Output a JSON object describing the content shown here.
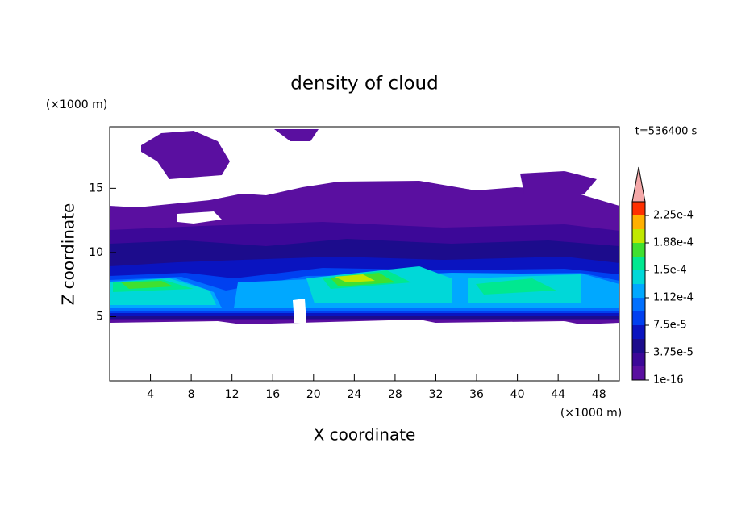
{
  "chart_data": {
    "type": "contour",
    "title": "density of cloud",
    "xlabel": "X coordinate",
    "ylabel": "Z coordinate",
    "x_unit": "(×1000 m)",
    "y_unit": "(×1000 m)",
    "annotation": "t=536400 s",
    "xlim": [
      0,
      50
    ],
    "xticks": [
      4,
      8,
      12,
      16,
      20,
      24,
      28,
      32,
      36,
      40,
      44,
      48
    ],
    "ylim": [
      0,
      19.8
    ],
    "yticks": [
      5,
      10,
      15
    ],
    "colorbar": {
      "lim": [
        0,
        0.00024375
      ],
      "ticks": [
        {
          "value": 1e-16,
          "label": "1e-16"
        },
        {
          "value": 3.75e-05,
          "label": "3.75e-5"
        },
        {
          "value": 7.5e-05,
          "label": "7.5e-5"
        },
        {
          "value": 0.0001125,
          "label": "1.12e-4"
        },
        {
          "value": 0.00015,
          "label": "1.5e-4"
        },
        {
          "value": 0.0001875,
          "label": "1.88e-4"
        },
        {
          "value": 0.000225,
          "label": "2.25e-4"
        }
      ],
      "colors": [
        "#5a0fa0",
        "#3c0898",
        "#1c0c8c",
        "#0a14c0",
        "#0040f0",
        "#0070ff",
        "#00a8ff",
        "#00d8d8",
        "#00e890",
        "#40e030",
        "#c0e800",
        "#ffb000",
        "#ff3000"
      ],
      "extend_color": "#f4a8a8"
    }
  }
}
